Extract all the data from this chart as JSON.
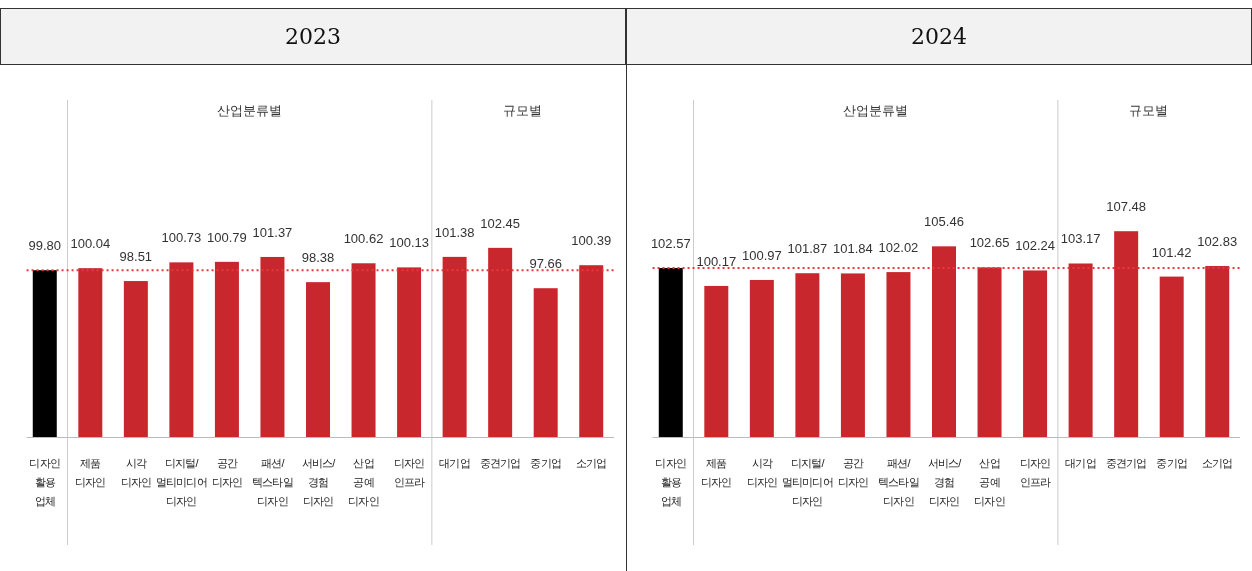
{
  "chart_data": [
    {
      "type": "bar",
      "title": "2023",
      "categories": [
        "디자인\n활용\n업체",
        "제품\n디자인",
        "시각\n디자인",
        "디지털/\n멀티미디어\n디자인",
        "공간\n디자인",
        "패션/\n텍스타일\n디자인",
        "서비스/\n경험\n디자인",
        "산업\n공예\n디자인",
        "디자인\n인프라",
        "대기업",
        "중견기업",
        "중기업",
        "소기업"
      ],
      "values": [
        99.8,
        100.04,
        98.51,
        100.73,
        100.79,
        101.37,
        98.38,
        100.62,
        100.13,
        101.38,
        102.45,
        97.66,
        100.39
      ],
      "colors": [
        "#000000",
        "#c8282d",
        "#c8282d",
        "#c8282d",
        "#c8282d",
        "#c8282d",
        "#c8282d",
        "#c8282d",
        "#c8282d",
        "#c8282d",
        "#c8282d",
        "#c8282d",
        "#c8282d"
      ],
      "ylim": [
        80,
        120
      ],
      "value_labels": [
        "99.80",
        "100.04",
        "98.51",
        "100.73",
        "100.79",
        "101.37",
        "98.38",
        "100.62",
        "100.13",
        "101.38",
        "102.45",
        "97.66",
        "100.39"
      ],
      "ref_lines": [
        {
          "axis": "y",
          "value": 99.8,
          "color": "#e8383d",
          "line_style": "dotted"
        }
      ],
      "annotations": [
        "산업분류별",
        "규모별"
      ]
    },
    {
      "type": "bar",
      "title": "2024",
      "categories": [
        "디자인\n활용\n업체",
        "제품\n디자인",
        "시각\n디자인",
        "디지털/\n멀티미디어\n디자인",
        "공간\n디자인",
        "패션/\n텍스타일\n디자인",
        "서비스/\n경험\n디자인",
        "산업\n공예\n디자인",
        "디자인\n인프라",
        "대기업",
        "중견기업",
        "중기업",
        "소기업"
      ],
      "values": [
        102.57,
        100.17,
        100.97,
        101.87,
        101.84,
        102.02,
        105.46,
        102.65,
        102.24,
        103.17,
        107.48,
        101.42,
        102.83
      ],
      "colors": [
        "#000000",
        "#c8282d",
        "#c8282d",
        "#c8282d",
        "#c8282d",
        "#c8282d",
        "#c8282d",
        "#c8282d",
        "#c8282d",
        "#c8282d",
        "#c8282d",
        "#c8282d",
        "#c8282d"
      ],
      "ylim": [
        80,
        125
      ],
      "value_labels": [
        "102.57",
        "100.17",
        "100.97",
        "101.87",
        "101.84",
        "102.02",
        "105.46",
        "102.65",
        "102.24",
        "103.17",
        "107.48",
        "101.42",
        "102.83"
      ],
      "ref_lines": [
        {
          "axis": "y",
          "value": 102.57,
          "color": "#e8383d",
          "line_style": "dotted"
        }
      ],
      "annotations": [
        "산업분류별",
        "규모별"
      ]
    }
  ]
}
